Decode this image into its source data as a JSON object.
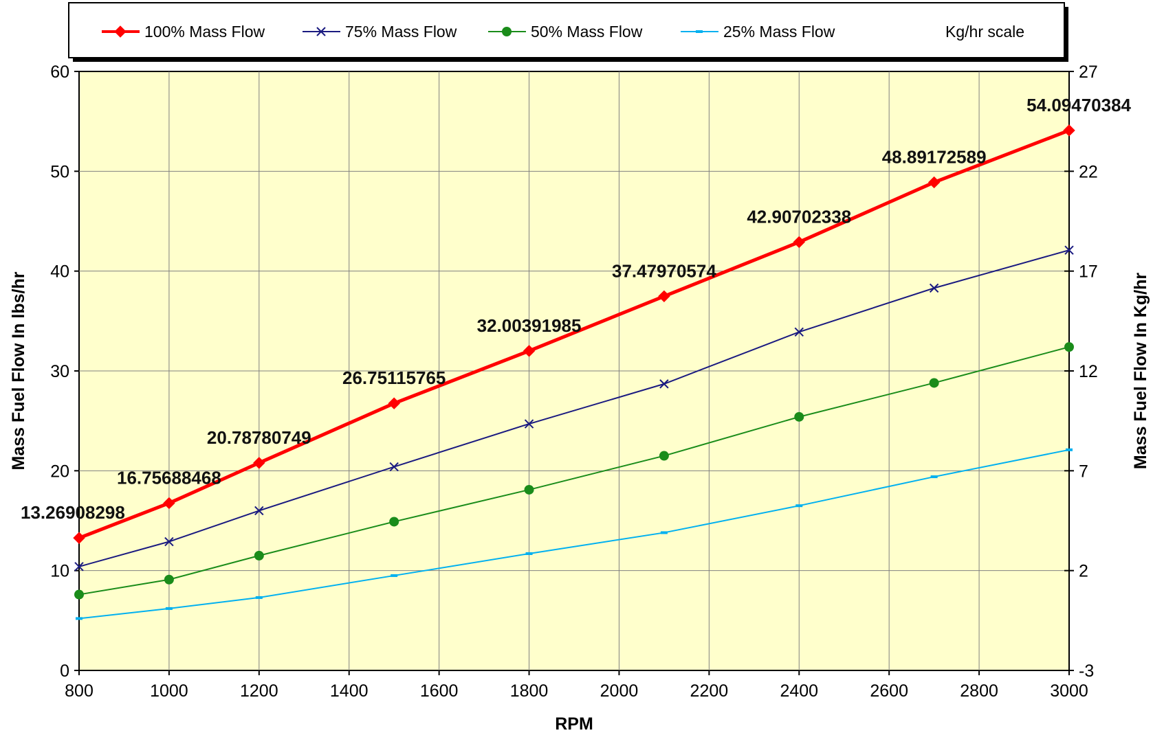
{
  "chart_data": {
    "type": "line",
    "xlabel": "RPM",
    "ylabel": "Mass Fuel Flow In lbs/hr",
    "y2label": "Mass Fuel Flow In Kg/hr",
    "xlim": [
      800,
      3000
    ],
    "ylim": [
      0,
      60
    ],
    "y2lim": [
      -3,
      27
    ],
    "x_ticks": [
      800,
      1000,
      1200,
      1400,
      1600,
      1800,
      2000,
      2200,
      2400,
      2600,
      2800,
      3000
    ],
    "y_ticks": [
      0,
      10,
      20,
      30,
      40,
      50,
      60
    ],
    "y2_ticks": [
      -3,
      2,
      7,
      12,
      17,
      22,
      27
    ],
    "grid": true,
    "plot_background": "#ffffcc",
    "legend_position": "top",
    "legend": [
      "100% Mass Flow",
      "75% Mass Flow",
      "50% Mass Flow",
      "25% Mass Flow",
      "Kg/hr scale"
    ],
    "x": [
      800,
      1000,
      1200,
      1500,
      1800,
      2100,
      2400,
      2700,
      3000
    ],
    "series": [
      {
        "name": "100% Mass Flow",
        "color": "#ff0000",
        "marker": "diamond",
        "values": [
          13.26908298,
          16.75688468,
          20.78780749,
          26.75115765,
          32.00391985,
          37.47970574,
          42.90702338,
          48.89172589,
          54.09470384
        ],
        "labels": [
          "13.26908298",
          "16.75688468",
          "20.78780749",
          "26.75115765",
          "32.00391985",
          "37.47970574",
          "42.90702338",
          "48.89172589",
          "54.09470384"
        ]
      },
      {
        "name": "75% Mass Flow",
        "color": "#1a1a80",
        "marker": "x",
        "values": [
          10.4,
          12.9,
          16.0,
          20.4,
          24.7,
          28.7,
          33.9,
          38.3,
          42.1
        ]
      },
      {
        "name": "50% Mass Flow",
        "color": "#1a8c1a",
        "marker": "circle",
        "values": [
          7.6,
          9.1,
          11.5,
          14.9,
          18.1,
          21.5,
          25.4,
          28.8,
          32.4
        ]
      },
      {
        "name": "25% Mass Flow",
        "color": "#00b0f0",
        "marker": "dash",
        "values": [
          5.2,
          6.2,
          7.3,
          9.5,
          11.7,
          13.8,
          16.5,
          19.4,
          22.1
        ]
      }
    ],
    "extra_legend_entry": {
      "name": "Kg/hr scale",
      "color": "#ffffff"
    }
  }
}
